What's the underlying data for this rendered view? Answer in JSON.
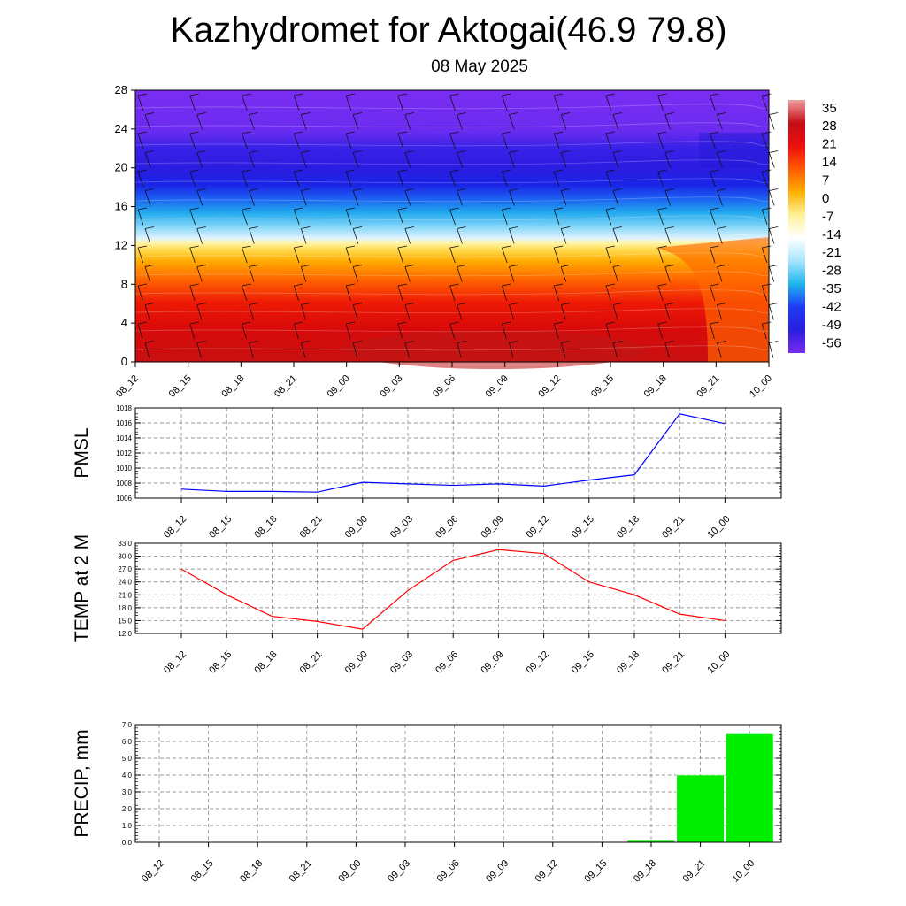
{
  "title": "Kazhydromet for Aktogai(46.9 79.8)",
  "subtitle": "08 May 2025",
  "time_labels": [
    "08_12",
    "08_15",
    "08_18",
    "08_21",
    "09_00",
    "09_03",
    "09_06",
    "09_09",
    "09_12",
    "09_15",
    "09_18",
    "09_21",
    "10_00"
  ],
  "chart_data": [
    {
      "type": "heatmap",
      "panel": "cross-section",
      "x": [
        "08_12",
        "08_15",
        "08_18",
        "08_21",
        "09_00",
        "09_03",
        "09_06",
        "09_09",
        "09_12",
        "09_15",
        "09_18",
        "09_21",
        "10_00"
      ],
      "ylim": [
        0,
        28
      ],
      "yticks": [
        "0",
        "4",
        "8",
        "12",
        "16",
        "20",
        "24",
        "28"
      ],
      "colorbar_labels": [
        "35",
        "28",
        "21",
        "14",
        "7",
        "0",
        "-7",
        "-14",
        "-21",
        "-28",
        "-35",
        "-42",
        "-49",
        "-56"
      ],
      "colorbar_range": [
        -60,
        38
      ],
      "colors": [
        "#7a2cf0",
        "#2a1ee0",
        "#1e3cf5",
        "#1fb4ef",
        "#a6e6ff",
        "#ffffff",
        "#fff29a",
        "#ffb000",
        "#ff5a00",
        "#ee0d0d",
        "#c40e16",
        "#f0a0a0"
      ],
      "overlay": "wind barbs"
    },
    {
      "type": "line",
      "ylabel": "PMSL",
      "x": [
        "08_12",
        "08_15",
        "08_18",
        "08_21",
        "09_00",
        "09_03",
        "09_06",
        "09_09",
        "09_12",
        "09_15",
        "09_18",
        "09_21",
        "10_00"
      ],
      "values": [
        1007.2,
        1006.9,
        1006.9,
        1006.8,
        1008.1,
        1007.9,
        1007.7,
        1007.9,
        1007.6,
        1008.4,
        1009.1,
        1017.2,
        1015.9
      ],
      "ylim": [
        1006,
        1018
      ],
      "yticks": [
        "1006",
        "1008",
        "1010",
        "1012",
        "1014",
        "1016",
        "1018"
      ],
      "color": "#0000ff"
    },
    {
      "type": "line",
      "ylabel": "TEMP at 2 M",
      "x": [
        "08_12",
        "08_15",
        "08_18",
        "08_21",
        "09_00",
        "09_03",
        "09_06",
        "09_09",
        "09_12",
        "09_15",
        "09_18",
        "09_21",
        "10_00"
      ],
      "values": [
        27.0,
        21.0,
        16.0,
        14.8,
        13.0,
        22.0,
        29.0,
        31.5,
        30.6,
        24.0,
        21.0,
        16.5,
        15.0
      ],
      "ylim": [
        12,
        33
      ],
      "yticks": [
        "12.0",
        "15.0",
        "18.0",
        "21.0",
        "24.0",
        "27.0",
        "30.0",
        "33.0"
      ],
      "color": "#ff0000"
    },
    {
      "type": "bar",
      "ylabel": "PRECIP, mm",
      "x": [
        "08_12",
        "08_15",
        "08_18",
        "08_21",
        "09_00",
        "09_03",
        "09_06",
        "09_09",
        "09_12",
        "09_15",
        "09_18",
        "09_21",
        "10_00"
      ],
      "values": [
        0,
        0,
        0,
        0,
        0,
        0,
        0,
        0,
        0,
        0,
        0.15,
        4.0,
        6.45
      ],
      "ylim": [
        0,
        7
      ],
      "yticks": [
        "0.0",
        "1.0",
        "2.0",
        "3.0",
        "4.0",
        "5.0",
        "6.0",
        "7.0"
      ],
      "color": "#00ee00"
    }
  ]
}
